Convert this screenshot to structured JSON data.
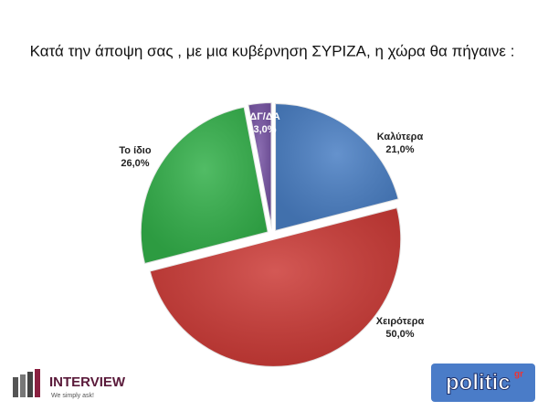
{
  "chart_data": {
    "type": "pie",
    "title": "Κατά την άποψη σας , με μια κυβέρνηση ΣΥΡΙΖΑ, η χώρα θα πήγαινε :",
    "categories": [
      "Καλύτερα",
      "Χειρότερα",
      "Το ίδιο",
      "ΔΓ/ΔΑ"
    ],
    "values": [
      21.0,
      50.0,
      26.0,
      3.0
    ],
    "value_labels": [
      "21,0%",
      "50,0%",
      "26,0%",
      "3,0%"
    ],
    "colors": [
      "#4a7fc4",
      "#cc3b37",
      "#33b04a",
      "#7653a3"
    ]
  },
  "logos": {
    "interview": {
      "name": "INTERVIEW",
      "slogan": "We simply ask!"
    },
    "politic": {
      "name": "politic",
      "suffix": "gr"
    }
  }
}
